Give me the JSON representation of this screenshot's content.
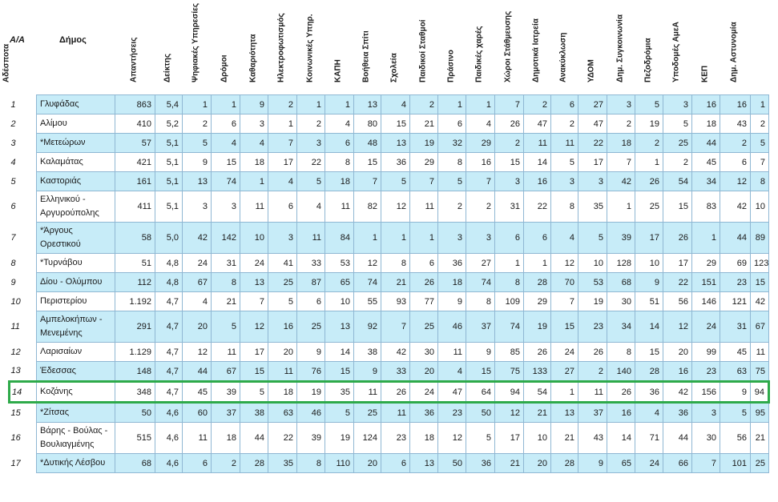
{
  "headers": {
    "rank": "A/A",
    "name": "Δήμος",
    "cols": [
      "Απαντήσεις",
      "Δείκτης",
      "Ψηφιακές Υπηρεσίες",
      "Δρόμοι",
      "Καθαριότητα",
      "Ηλεκτροφωτισμός",
      "Κοινωνικές Υπηρ.",
      "ΚΑΠΗ",
      "Βοήθεια Σπίτι",
      "Σχολεία",
      "Παιδικοί Σταθμοί",
      "Πράσινο",
      "Παιδικές χαρές",
      "Χώροι Στάθμευσης",
      "Δημοτικά Ιατρεία",
      "Ανακύκλωση",
      "ΥΔΟΜ",
      "Δημ. Συγκοινωνία",
      "Πεζοδρόμια",
      "Υποδομές ΑμεΑ",
      "ΚΕΠ",
      "Δημ. Αστυνομία",
      "Αδέσποτα"
    ]
  },
  "rows": [
    {
      "rank": "1",
      "name": "Γλυφάδας",
      "v": [
        "863",
        "5,4",
        "1",
        "1",
        "9",
        "2",
        "1",
        "1",
        "13",
        "4",
        "2",
        "1",
        "1",
        "7",
        "2",
        "6",
        "27",
        "3",
        "5",
        "3",
        "16",
        "16",
        "1"
      ]
    },
    {
      "rank": "2",
      "name": "Αλίμου",
      "v": [
        "410",
        "5,2",
        "2",
        "6",
        "3",
        "1",
        "2",
        "4",
        "80",
        "15",
        "21",
        "6",
        "4",
        "26",
        "47",
        "2",
        "47",
        "2",
        "19",
        "5",
        "18",
        "43",
        "2"
      ]
    },
    {
      "rank": "3",
      "name": "*Μετεώρων",
      "v": [
        "57",
        "5,1",
        "5",
        "4",
        "4",
        "7",
        "3",
        "6",
        "48",
        "13",
        "19",
        "32",
        "29",
        "2",
        "11",
        "11",
        "22",
        "18",
        "2",
        "25",
        "44",
        "2",
        "5"
      ]
    },
    {
      "rank": "4",
      "name": "Καλαμάτας",
      "v": [
        "421",
        "5,1",
        "9",
        "15",
        "18",
        "17",
        "22",
        "8",
        "15",
        "36",
        "29",
        "8",
        "16",
        "15",
        "14",
        "5",
        "17",
        "7",
        "1",
        "2",
        "45",
        "6",
        "7"
      ]
    },
    {
      "rank": "5",
      "name": "Καστοριάς",
      "v": [
        "161",
        "5,1",
        "13",
        "74",
        "1",
        "4",
        "5",
        "18",
        "7",
        "5",
        "7",
        "5",
        "7",
        "3",
        "16",
        "3",
        "3",
        "42",
        "26",
        "54",
        "34",
        "12",
        "8"
      ]
    },
    {
      "rank": "6",
      "name": "Ελληνικού - Αργυρούπολης",
      "v": [
        "411",
        "5,1",
        "3",
        "3",
        "11",
        "6",
        "4",
        "11",
        "82",
        "12",
        "11",
        "2",
        "2",
        "31",
        "22",
        "8",
        "35",
        "1",
        "25",
        "15",
        "83",
        "42",
        "10"
      ]
    },
    {
      "rank": "7",
      "name": "*Άργους Ορεστικού",
      "v": [
        "58",
        "5,0",
        "42",
        "142",
        "10",
        "3",
        "11",
        "84",
        "1",
        "1",
        "1",
        "3",
        "3",
        "6",
        "6",
        "4",
        "5",
        "39",
        "17",
        "26",
        "1",
        "44",
        "89"
      ]
    },
    {
      "rank": "8",
      "name": "*Τυρνάβου",
      "v": [
        "51",
        "4,8",
        "24",
        "31",
        "24",
        "41",
        "33",
        "53",
        "12",
        "8",
        "6",
        "36",
        "27",
        "1",
        "1",
        "12",
        "10",
        "128",
        "10",
        "17",
        "29",
        "69",
        "123"
      ]
    },
    {
      "rank": "9",
      "name": "Δίου - Ολύμπου",
      "v": [
        "112",
        "4,8",
        "67",
        "8",
        "13",
        "25",
        "87",
        "65",
        "74",
        "21",
        "26",
        "18",
        "74",
        "8",
        "28",
        "70",
        "53",
        "68",
        "9",
        "22",
        "151",
        "23",
        "15"
      ]
    },
    {
      "rank": "10",
      "name": "Περιστερίου",
      "v": [
        "1.192",
        "4,7",
        "4",
        "21",
        "7",
        "5",
        "6",
        "10",
        "55",
        "93",
        "77",
        "9",
        "8",
        "109",
        "29",
        "7",
        "19",
        "30",
        "51",
        "56",
        "146",
        "121",
        "42"
      ]
    },
    {
      "rank": "11",
      "name": "Αμπελοκήπων - Μενεμένης",
      "v": [
        "291",
        "4,7",
        "20",
        "5",
        "12",
        "16",
        "25",
        "13",
        "92",
        "7",
        "25",
        "46",
        "37",
        "74",
        "19",
        "15",
        "23",
        "34",
        "14",
        "12",
        "24",
        "31",
        "67"
      ]
    },
    {
      "rank": "12",
      "name": "Λαρισαίων",
      "v": [
        "1.129",
        "4,7",
        "12",
        "11",
        "17",
        "20",
        "9",
        "14",
        "38",
        "42",
        "30",
        "11",
        "9",
        "85",
        "26",
        "24",
        "26",
        "8",
        "15",
        "20",
        "99",
        "45",
        "11"
      ]
    },
    {
      "rank": "13",
      "name": "Έδεσσας",
      "v": [
        "148",
        "4,7",
        "44",
        "67",
        "15",
        "11",
        "76",
        "15",
        "9",
        "33",
        "20",
        "4",
        "15",
        "75",
        "133",
        "27",
        "2",
        "140",
        "28",
        "16",
        "23",
        "63",
        "75"
      ]
    },
    {
      "rank": "14",
      "name": "Κοζάνης",
      "v": [
        "348",
        "4,7",
        "45",
        "39",
        "5",
        "18",
        "19",
        "35",
        "11",
        "26",
        "24",
        "47",
        "64",
        "94",
        "54",
        "1",
        "11",
        "26",
        "36",
        "42",
        "156",
        "9",
        "94"
      ]
    },
    {
      "rank": "15",
      "name": "*Ζίτσας",
      "v": [
        "50",
        "4,6",
        "60",
        "37",
        "38",
        "63",
        "46",
        "5",
        "25",
        "11",
        "36",
        "23",
        "50",
        "12",
        "21",
        "13",
        "37",
        "16",
        "4",
        "36",
        "3",
        "5",
        "95"
      ]
    },
    {
      "rank": "16",
      "name": "Βάρης - Βούλας - Βουλιαγμένης",
      "v": [
        "515",
        "4,6",
        "11",
        "18",
        "44",
        "22",
        "39",
        "19",
        "124",
        "23",
        "18",
        "12",
        "5",
        "17",
        "10",
        "21",
        "43",
        "14",
        "71",
        "44",
        "30",
        "56",
        "21"
      ]
    },
    {
      "rank": "17",
      "name": "*Δυτικής Λέσβου",
      "v": [
        "68",
        "4,6",
        "6",
        "2",
        "28",
        "35",
        "8",
        "110",
        "20",
        "6",
        "13",
        "50",
        "36",
        "21",
        "20",
        "28",
        "9",
        "65",
        "24",
        "66",
        "7",
        "101",
        "25"
      ]
    }
  ],
  "highlight_rank": "14",
  "colors": {
    "odd_row": "#c7ecf8",
    "even_row": "#ffffff",
    "grid": "#8fb7d3",
    "highlight_border": "#2eaa4a"
  }
}
